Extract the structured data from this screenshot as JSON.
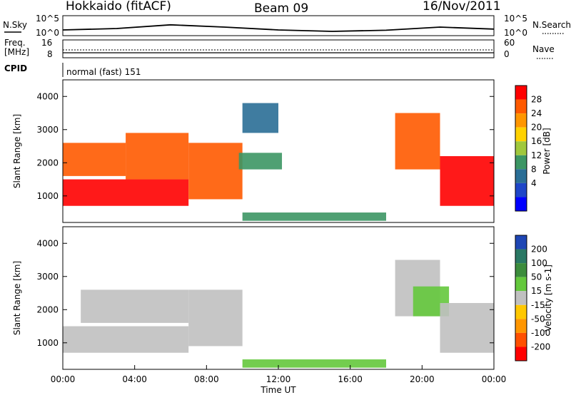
{
  "header": {
    "station": "Hokkaido (fitACF)",
    "beam": "Beam 09",
    "date": "16/Nov/2011"
  },
  "top_panels": {
    "nsky_label": "N.Sky",
    "nsky_ticks": [
      "10^5",
      "10^0"
    ],
    "nsearch_label": "N.Search",
    "nsearch_ticks": [
      "10^5",
      "10^0"
    ],
    "freq_label_1": "Freq.",
    "freq_label_2": "[MHz]",
    "freq_ticks": [
      "16",
      "8"
    ],
    "nave_label": "Nave",
    "nave_ticks": [
      "60",
      "0"
    ],
    "cpid_label": "CPID",
    "cpid_value": "normal (fast) 151"
  },
  "axes": {
    "ylabel": "Slant Range [km]",
    "xlabel": "Time UT",
    "yticks": [
      "4000",
      "3000",
      "2000",
      "1000"
    ],
    "xticks": [
      "00:00",
      "04:00",
      "08:00",
      "12:00",
      "16:00",
      "20:00",
      "00:00"
    ]
  },
  "power_scale": {
    "label": "Power [dB]",
    "ticks": [
      "28",
      "24",
      "20",
      "16",
      "12",
      "8",
      "4"
    ],
    "colors": [
      "#ff0000",
      "#ff5a00",
      "#ff9600",
      "#ffd200",
      "#a0c83c",
      "#3c9664",
      "#2a6e96",
      "#1e46c8",
      "#0000ff"
    ]
  },
  "velocity_scale": {
    "label": "Velocity [m s-1]",
    "ticks": [
      "200",
      "100",
      "50",
      "15",
      "-15",
      "-50",
      "-100",
      "-200"
    ],
    "colors": [
      "#1e46b4",
      "#2a7864",
      "#3c8c3c",
      "#64c83c",
      "#c0c0c0",
      "#ffc800",
      "#ff9600",
      "#ff5000",
      "#ff0000"
    ]
  },
  "chart_data": [
    {
      "type": "line",
      "panel": "N.Sky / N.Search",
      "x": [
        "00:00",
        "04:00",
        "06:00",
        "08:00",
        "12:00",
        "16:00",
        "20:00",
        "22:00",
        "24:00"
      ],
      "series": [
        {
          "name": "N.Sky",
          "values": [
            1.0,
            1.5,
            2.8,
            2.0,
            1.0,
            0.5,
            0.9,
            2.0,
            1.3
          ]
        }
      ]
    },
    {
      "type": "line",
      "panel": "Freq / Nave",
      "series": [
        {
          "name": "Freq.",
          "values": [
            11,
            11,
            11,
            11,
            11,
            11
          ]
        },
        {
          "name": "Nave",
          "values": [
            14,
            14,
            14,
            14,
            14,
            14
          ]
        }
      ]
    },
    {
      "type": "heatmap",
      "panel": "Power",
      "xlim": [
        "00:00",
        "24:00"
      ],
      "ylim": [
        200,
        4500
      ],
      "ylabel": "Slant Range [km]",
      "xlabel": "Time UT",
      "colorbar": "Power [dB]",
      "regions": [
        {
          "t0": 0.0,
          "t1": 7.0,
          "r0": 700,
          "r1": 1500,
          "value": 28
        },
        {
          "t0": 0.0,
          "t1": 3.5,
          "r0": 1600,
          "r1": 2600,
          "value": 24
        },
        {
          "t0": 3.5,
          "t1": 7.0,
          "r0": 1500,
          "r1": 2900,
          "value": 26
        },
        {
          "t0": 7.0,
          "t1": 10.0,
          "r0": 900,
          "r1": 2600,
          "value": 24
        },
        {
          "t0": 9.8,
          "t1": 12.2,
          "r0": 1800,
          "r1": 2300,
          "value": 10
        },
        {
          "t0": 10.0,
          "t1": 12.0,
          "r0": 2900,
          "r1": 3800,
          "value": 6
        },
        {
          "t0": 10.0,
          "t1": 18.0,
          "r0": 250,
          "r1": 500,
          "value": 8
        },
        {
          "t0": 18.5,
          "t1": 21.0,
          "r0": 1800,
          "r1": 3500,
          "value": 26
        },
        {
          "t0": 21.0,
          "t1": 24.0,
          "r0": 700,
          "r1": 2200,
          "value": 28
        }
      ]
    },
    {
      "type": "heatmap",
      "panel": "Velocity",
      "xlim": [
        "00:00",
        "24:00"
      ],
      "ylim": [
        200,
        4500
      ],
      "ylabel": "Slant Range [km]",
      "xlabel": "Time UT",
      "colorbar": "Velocity [m s-1]",
      "regions": [
        {
          "t0": 0.0,
          "t1": 7.0,
          "r0": 700,
          "r1": 1500,
          "value": 0
        },
        {
          "t0": 1.0,
          "t1": 7.0,
          "r0": 1600,
          "r1": 2600,
          "value": 0
        },
        {
          "t0": 7.0,
          "t1": 10.0,
          "r0": 900,
          "r1": 2600,
          "value": 0
        },
        {
          "t0": 10.0,
          "t1": 18.0,
          "r0": 250,
          "r1": 500,
          "value": 25
        },
        {
          "t0": 18.5,
          "t1": 21.0,
          "r0": 1800,
          "r1": 3500,
          "value": 0
        },
        {
          "t0": 19.5,
          "t1": 21.5,
          "r0": 1800,
          "r1": 2700,
          "value": 25
        },
        {
          "t0": 21.0,
          "t1": 24.0,
          "r0": 700,
          "r1": 2200,
          "value": 0
        }
      ]
    }
  ]
}
